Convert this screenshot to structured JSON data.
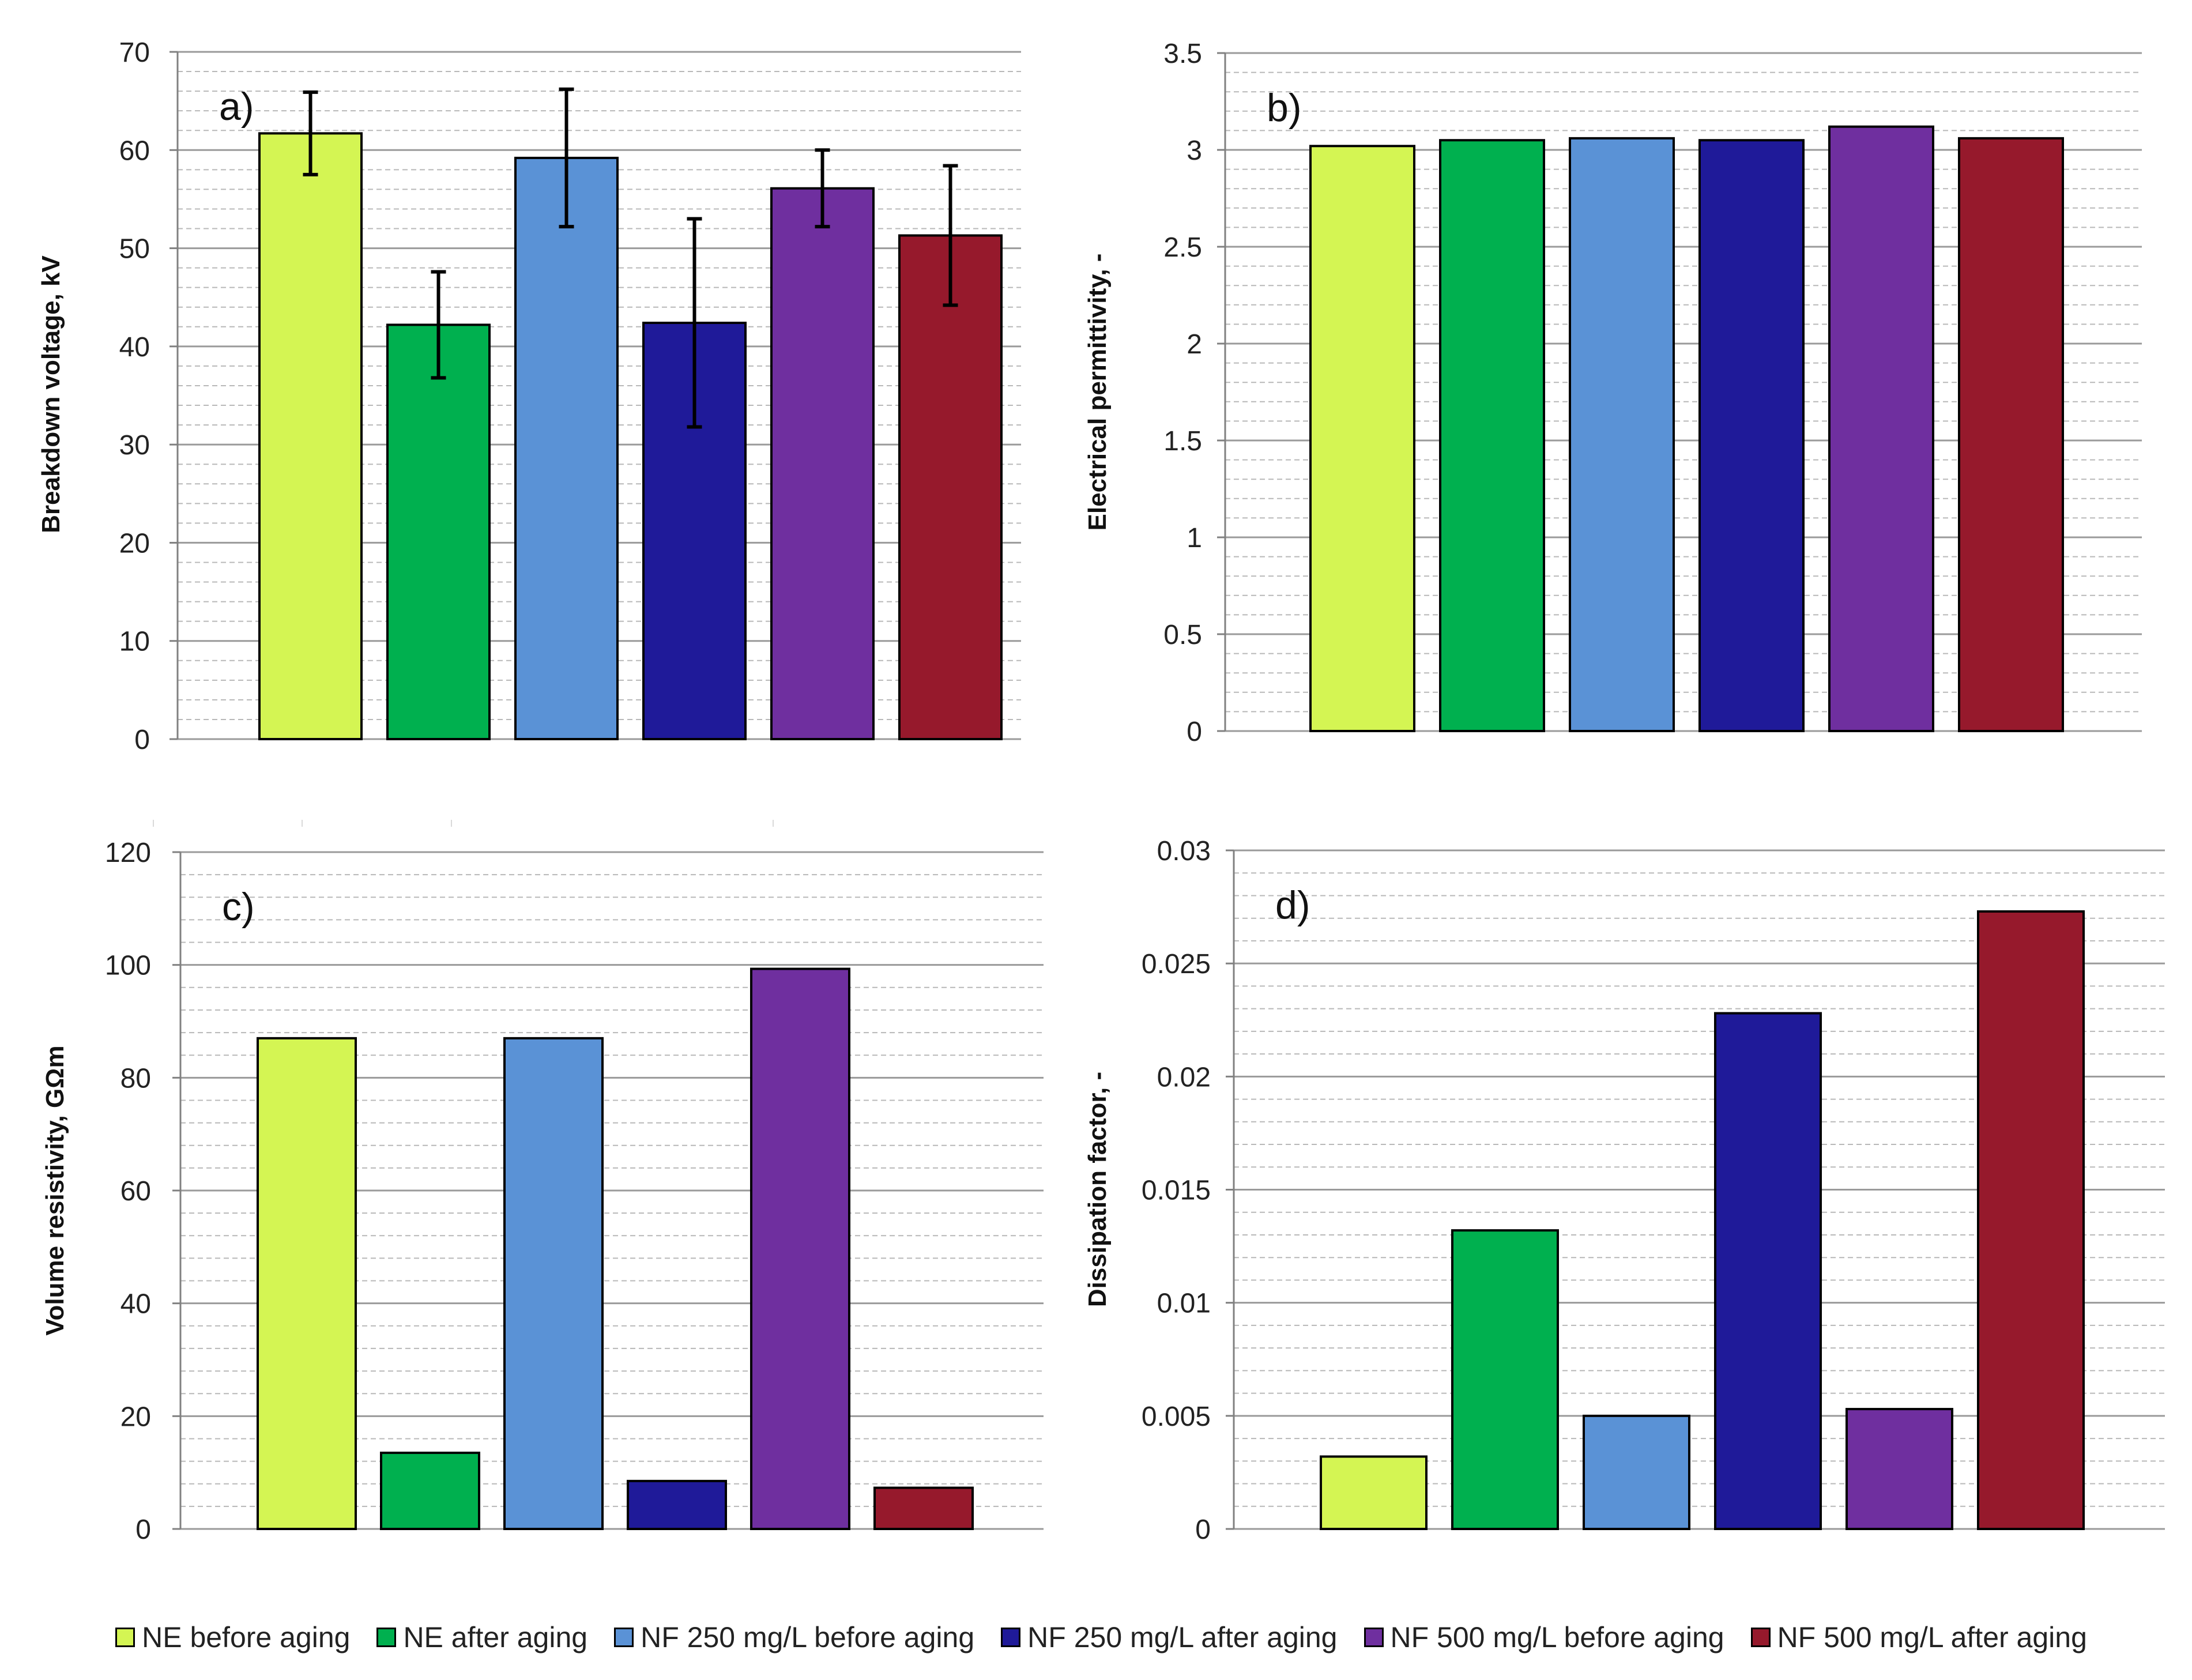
{
  "colors": {
    "NE before aging": "#d4f553",
    "NE after aging": "#00b04f",
    "NF 250 mg/L before aging": "#5a92d6",
    "NF 250 mg/L after aging": "#1f1a99",
    "NF 500 mg/L before aging": "#6f2f9f",
    "NF 500 mg/L after aging": "#96192c"
  },
  "legend": [
    "NE before aging",
    "NE after aging",
    "NF 250 mg/L before aging",
    "NF 250 mg/L after aging",
    "NF 500 mg/L before aging",
    "NF 500 mg/L after aging"
  ],
  "chart_data": [
    {
      "type": "bar",
      "panel_label": "a)",
      "ylabel": "Breakdown voltage, kV",
      "ylim": [
        0,
        70
      ],
      "yticks": [
        0,
        10,
        20,
        30,
        40,
        50,
        60,
        70
      ],
      "ytick_labels": [
        "0",
        "10",
        "20",
        "30",
        "40",
        "50",
        "60",
        "70"
      ],
      "minor_grid": true,
      "categories": [
        "NE before aging",
        "NE after aging",
        "NF 250 mg/L before aging",
        "NF 250 mg/L after aging",
        "NF 500 mg/L before aging",
        "NF 500 mg/L after aging"
      ],
      "values": [
        61.7,
        42.2,
        59.2,
        42.4,
        56.1,
        51.3
      ],
      "error": [
        4.2,
        5.4,
        7.0,
        10.6,
        3.9,
        7.1
      ]
    },
    {
      "type": "bar",
      "panel_label": "b)",
      "ylabel": "Electrical  permittivity,  -",
      "ylim": [
        0,
        3.5
      ],
      "yticks": [
        0,
        0.5,
        1,
        1.5,
        2,
        2.5,
        3,
        3.5
      ],
      "ytick_labels": [
        "0",
        "0.5",
        "1",
        "1.5",
        "2",
        "2.5",
        "3",
        "3.5"
      ],
      "minor_grid": true,
      "categories": [
        "NE before aging",
        "NE after aging",
        "NF 250 mg/L before aging",
        "NF 250 mg/L after aging",
        "NF 500 mg/L before aging",
        "NF 500 mg/L after aging"
      ],
      "values": [
        3.02,
        3.05,
        3.06,
        3.05,
        3.12,
        3.06
      ]
    },
    {
      "type": "bar",
      "panel_label": "c)",
      "ylabel": "Volume resistivity,  GΩm",
      "ylim": [
        0,
        120
      ],
      "yticks": [
        0,
        20,
        40,
        60,
        80,
        100,
        120
      ],
      "ytick_labels": [
        "0",
        "20",
        "40",
        "60",
        "80",
        "100",
        "120"
      ],
      "minor_grid": true,
      "categories": [
        "NE before aging",
        "NE after aging",
        "NF 250 mg/L before aging",
        "NF 250 mg/L after aging",
        "NF 500 mg/L before aging",
        "NF 500 mg/L after aging"
      ],
      "values": [
        87.0,
        13.5,
        87.0,
        8.5,
        99.3,
        7.3
      ]
    },
    {
      "type": "bar",
      "panel_label": "d)",
      "ylabel": "Dissipation  factor, -",
      "ylim": [
        0,
        0.03
      ],
      "yticks": [
        0,
        0.005,
        0.01,
        0.015,
        0.02,
        0.025,
        0.03
      ],
      "ytick_labels": [
        "0",
        "0.005",
        "0.01",
        "0.015",
        "0.02",
        "0.025",
        "0.03"
      ],
      "minor_grid": true,
      "categories": [
        "NE before aging",
        "NE after aging",
        "NF 250 mg/L before aging",
        "NF 250 mg/L after aging",
        "NF 500 mg/L before aging",
        "NF 500 mg/L after aging"
      ],
      "values": [
        0.0032,
        0.0132,
        0.005,
        0.0228,
        0.0053,
        0.0273
      ]
    }
  ]
}
